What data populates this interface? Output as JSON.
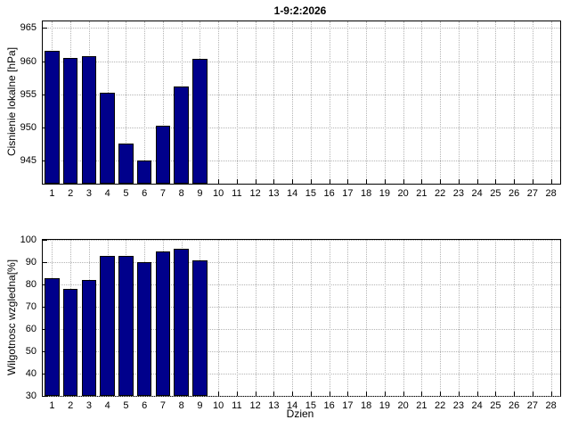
{
  "figure": {
    "background": "#ffffff"
  },
  "colors": {
    "bar_fill": "#00008B",
    "bar_edge": "#000000",
    "grid": "#b4b4b4",
    "axis": "#000000"
  },
  "chart_data": [
    {
      "type": "bar",
      "title": "1-9:2:2026",
      "xlabel": "",
      "ylabel": "Cisnienie lokalne [hPa]",
      "x": [
        1,
        2,
        3,
        4,
        5,
        6,
        7,
        8,
        9
      ],
      "values": [
        961.5,
        960.5,
        960.8,
        955.2,
        947.5,
        945.0,
        950.2,
        956.2,
        960.4
      ],
      "xlim": [
        0.5,
        28.5
      ],
      "ylim": [
        941.5,
        966
      ],
      "yticks": [
        945,
        950,
        955,
        960,
        965
      ],
      "xticks": [
        1,
        2,
        3,
        4,
        5,
        6,
        7,
        8,
        9,
        10,
        11,
        12,
        13,
        14,
        15,
        16,
        17,
        18,
        19,
        20,
        21,
        22,
        23,
        24,
        25,
        26,
        27,
        28
      ],
      "grid": true,
      "legend": null
    },
    {
      "type": "bar",
      "title": "",
      "xlabel": "Dzien",
      "ylabel": "Wilgotnosc wzgledna[%]",
      "x": [
        1,
        2,
        3,
        4,
        5,
        6,
        7,
        8,
        9
      ],
      "values": [
        83,
        78,
        82,
        93,
        93,
        90,
        95,
        96,
        91
      ],
      "xlim": [
        0.5,
        28.5
      ],
      "ylim": [
        30,
        100
      ],
      "yticks": [
        30,
        40,
        50,
        60,
        70,
        80,
        90,
        100
      ],
      "xticks": [
        1,
        2,
        3,
        4,
        5,
        6,
        7,
        8,
        9,
        10,
        11,
        12,
        13,
        14,
        15,
        16,
        17,
        18,
        19,
        20,
        21,
        22,
        23,
        24,
        25,
        26,
        27,
        28
      ],
      "grid": true,
      "legend": null
    }
  ]
}
